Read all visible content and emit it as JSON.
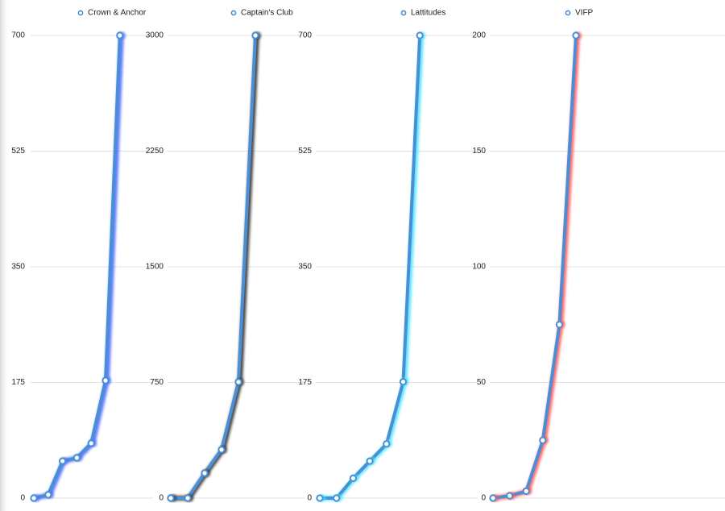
{
  "chart_data": [
    {
      "type": "line",
      "series": [
        {
          "name": "Crown & Anchor",
          "color": "#4a8fd6",
          "glow": "#4d6dff",
          "values": [
            0,
            5,
            56,
            61,
            83,
            178,
            700
          ]
        }
      ],
      "ylim": [
        0,
        700
      ],
      "yticks": [
        0,
        175,
        350,
        525,
        700
      ],
      "grid": true
    },
    {
      "type": "line",
      "series": [
        {
          "name": "Captain's Club",
          "color": "#4a8fd6",
          "glow": "#333333",
          "values": [
            0,
            0,
            162,
            314,
            753,
            3000
          ]
        }
      ],
      "ylim": [
        0,
        3000
      ],
      "yticks": [
        0,
        750,
        1500,
        2250,
        3000
      ],
      "grid": true
    },
    {
      "type": "line",
      "series": [
        {
          "name": "Lattitudes",
          "color": "#4a8fd6",
          "glow": "#4de3ff",
          "values": [
            0,
            0,
            30,
            56,
            82,
            176,
            700
          ]
        }
      ],
      "ylim": [
        0,
        700
      ],
      "yticks": [
        0,
        175,
        350,
        525,
        700
      ],
      "grid": true
    },
    {
      "type": "line",
      "series": [
        {
          "name": "VIFP",
          "color": "#4a8fd6",
          "glow": "#ff5a5a",
          "values": [
            0,
            1,
            3,
            25,
            75,
            200
          ]
        }
      ],
      "ylim": [
        0,
        200
      ],
      "yticks": [
        0,
        50,
        100,
        150,
        200
      ],
      "grid": true
    }
  ]
}
